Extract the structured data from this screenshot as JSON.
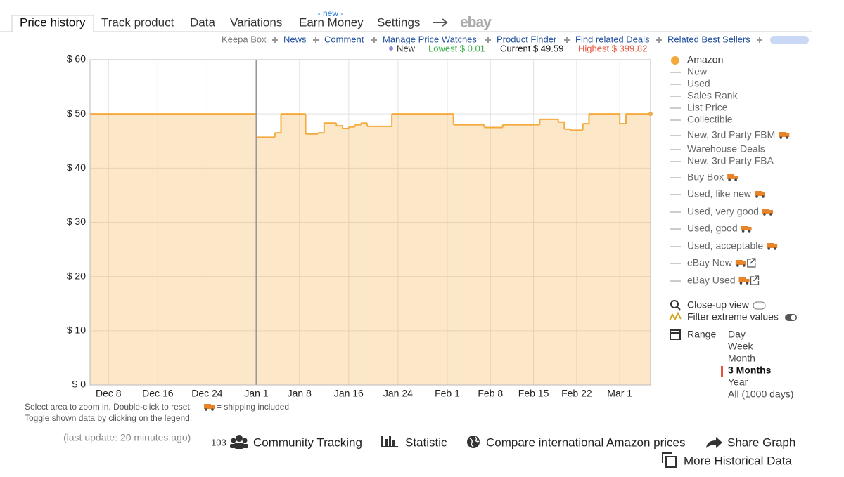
{
  "tabs": [
    "Price history",
    "Track product",
    "Data",
    "Variations",
    "Earn Money",
    "Settings"
  ],
  "tab_badge": "- new -",
  "ebay_logo": "ebay",
  "links": [
    "Keepa Box",
    "News",
    "Comment",
    "Manage Price Watches",
    "Product Finder",
    "Find related Deals",
    "Related Best Sellers"
  ],
  "stats": {
    "new": "New",
    "lowest": "Lowest $ 0.01",
    "current": "Current $ 49.59",
    "highest": "Highest $ 399.82"
  },
  "chart_data": {
    "type": "step",
    "x": [
      "Dec 5",
      "Jan 1",
      "Jan 4",
      "Jan 5",
      "Jan 9",
      "Jan 11",
      "Jan 12",
      "Jan 14",
      "Jan 15",
      "Jan 16",
      "Jan 17",
      "Jan 18",
      "Jan 19",
      "Jan 23",
      "Feb 2",
      "Feb 7",
      "Feb 10",
      "Feb 16",
      "Feb 19",
      "Feb 20",
      "Feb 21",
      "Feb 23",
      "Feb 24",
      "Mar 1",
      "Mar 2"
    ],
    "series": [
      {
        "name": "Amazon",
        "color": "#f4a93b",
        "values": [
          50,
          45.7,
          46.5,
          50,
          46.3,
          46.5,
          48.3,
          47.8,
          47.3,
          47.6,
          48,
          48.3,
          47.7,
          50,
          48,
          47.5,
          48,
          49,
          48.5,
          47.2,
          47,
          48.2,
          50,
          48.2,
          50
        ]
      }
    ],
    "xlim": [
      "Dec 5",
      "Mar 6"
    ],
    "xticks": [
      "Dec 8",
      "Dec 16",
      "Dec 24",
      "Jan 1",
      "Jan 8",
      "Jan 16",
      "Jan 24",
      "Feb 1",
      "Feb 8",
      "Feb 15",
      "Feb 22",
      "Mar 1"
    ],
    "ylim": [
      0,
      60
    ],
    "yticks": [
      {
        "value": 0,
        "label": "$ 0"
      },
      {
        "value": 10,
        "label": "$ 10"
      },
      {
        "value": 20,
        "label": "$ 20"
      },
      {
        "value": 30,
        "label": "$ 30"
      },
      {
        "value": 40,
        "label": "$ 40"
      },
      {
        "value": 50,
        "label": "$ 50"
      },
      {
        "value": 60,
        "label": "$ 60"
      }
    ],
    "grid": true
  },
  "legend": [
    {
      "label": "New"
    },
    {
      "label": "Used"
    },
    {
      "label": "Sales Rank"
    },
    {
      "label": "List Price"
    },
    {
      "label": "Collectible"
    },
    {
      "label": "New, 3rd Party FBM",
      "shipping": true
    },
    {
      "label": "Warehouse Deals"
    },
    {
      "label": "New, 3rd Party FBA"
    },
    {
      "label": "Buy Box",
      "shipping": true
    },
    {
      "label": "Used, like new",
      "shipping": true
    },
    {
      "label": "Used, very good",
      "shipping": true
    },
    {
      "label": "Used, good",
      "shipping": true
    },
    {
      "label": "Used, acceptable",
      "shipping": true
    },
    {
      "label": "eBay New",
      "shipping": true,
      "external": true
    },
    {
      "label": "eBay Used",
      "shipping": true,
      "external": true
    }
  ],
  "controls": {
    "close_up": "Close-up view",
    "filter": "Filter extreme values",
    "range": "Range"
  },
  "range_options": [
    "Day",
    "Week",
    "Month",
    "3 Months",
    "Year",
    "All (1000 days)"
  ],
  "range_selected": 3,
  "notes": {
    "zoom": "Select area to zoom in. Double-click to reset.",
    "shipping": "= shipping included",
    "toggle": "Toggle shown data by clicking on the legend.",
    "last_update": "(last update: 20 minutes ago)"
  },
  "actions": {
    "tracking_count": "103",
    "community": "Community Tracking",
    "statistic": "Statistic",
    "compare": "Compare international Amazon prices",
    "share": "Share Graph",
    "more": "More Historical Data"
  }
}
